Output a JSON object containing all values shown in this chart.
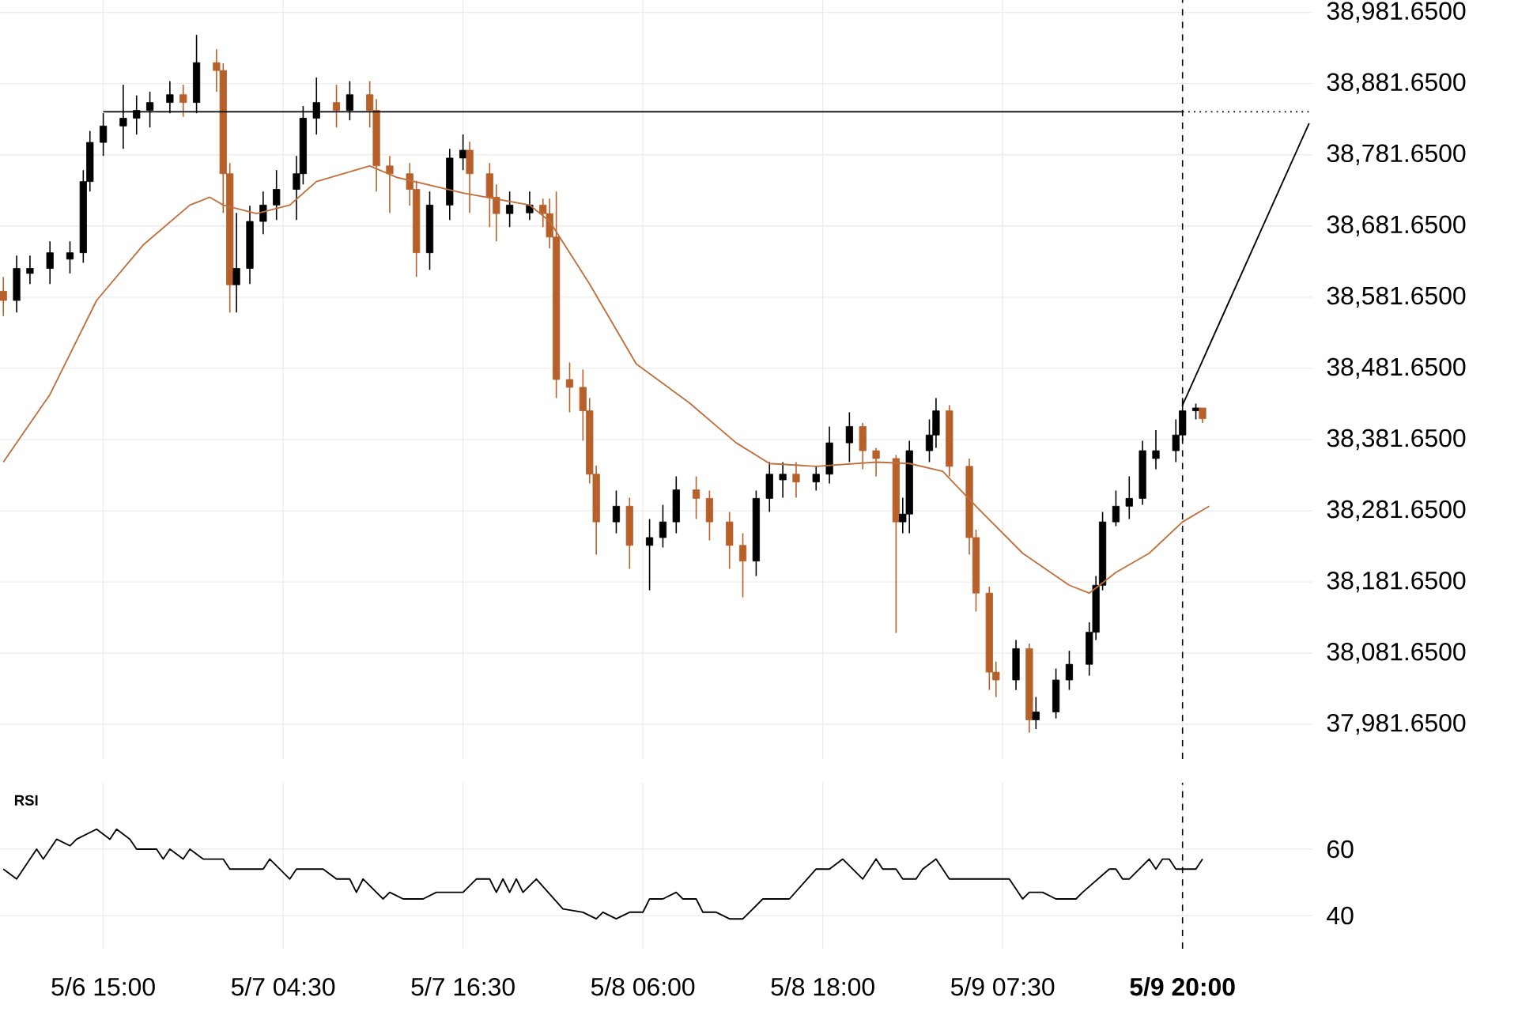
{
  "chart_data": [
    {
      "type": "candlestick",
      "categories": [
        null,
        null,
        null,
        null,
        null,
        null,
        null,
        null,
        null,
        null,
        null,
        null,
        null,
        null,
        null,
        "5/6 15:00",
        null,
        null,
        null,
        null,
        null,
        null,
        null,
        null,
        null,
        null,
        null,
        null,
        null,
        null,
        null,
        null,
        null,
        null,
        null,
        null,
        null,
        null,
        null,
        null,
        null,
        null,
        "5/7 04:30",
        null,
        null,
        null,
        null,
        null,
        null,
        null,
        null,
        null,
        null,
        null,
        null,
        null,
        null,
        null,
        null,
        null,
        null,
        null,
        null,
        null,
        null,
        null,
        null,
        null,
        null,
        "5/7 16:30",
        null,
        null,
        null,
        null,
        null,
        null,
        null,
        null,
        null,
        null,
        null,
        null,
        null,
        null,
        null,
        null,
        null,
        null,
        null,
        null,
        null,
        null,
        null,
        null,
        null,
        null,
        "5/8 06:00",
        null,
        null,
        null,
        null,
        null,
        null,
        null,
        null,
        null,
        null,
        null,
        null,
        null,
        null,
        null,
        null,
        null,
        null,
        null,
        null,
        null,
        null,
        null,
        null,
        null,
        null,
        "5/8 18:00",
        null,
        null,
        null,
        null,
        null,
        null,
        null,
        null,
        null,
        null,
        null,
        null,
        null,
        null,
        null,
        null,
        null,
        null,
        null,
        null,
        null,
        null,
        null,
        null,
        null,
        null,
        "5/9 07:30",
        null,
        null,
        null,
        null,
        null,
        null,
        null,
        null,
        null,
        null,
        null,
        null,
        null,
        null,
        null,
        null,
        null,
        null,
        null,
        null,
        null,
        null,
        null,
        null,
        null,
        null,
        "**5/9 20:00**",
        null,
        null,
        null,
        null,
        null,
        null,
        null,
        null,
        null,
        null,
        null,
        null,
        null,
        null,
        null,
        null,
        null,
        null,
        null
      ],
      "ohlc": [
        [
          38590,
          38610,
          38555,
          38577
        ],
        null,
        [
          38577,
          38640,
          38560,
          38622
        ],
        null,
        [
          38615,
          38640,
          38600,
          38622
        ],
        null,
        null,
        [
          38622,
          38660,
          38600,
          38644
        ],
        null,
        null,
        [
          38635,
          38660,
          38615,
          38644
        ],
        null,
        [
          38644,
          38760,
          38630,
          38744
        ],
        [
          38744,
          38815,
          38730,
          38799
        ],
        null,
        [
          38799,
          38840,
          38780,
          38822
        ],
        null,
        null,
        [
          38822,
          38880,
          38790,
          38833
        ],
        null,
        [
          38833,
          38865,
          38810,
          38844
        ],
        null,
        [
          38844,
          38870,
          38820,
          38855
        ],
        null,
        null,
        [
          38855,
          38885,
          38840,
          38866
        ],
        null,
        [
          38866,
          38880,
          38835,
          38855
        ],
        null,
        [
          38855,
          38950,
          38840,
          38911
        ],
        null,
        null,
        [
          38911,
          38930,
          38870,
          38900
        ],
        [
          38900,
          38910,
          38700,
          38755
        ],
        [
          38755,
          38770,
          38560,
          38599
        ],
        [
          38599,
          38700,
          38560,
          38622
        ],
        null,
        [
          38622,
          38710,
          38600,
          38688
        ],
        null,
        [
          38688,
          38730,
          38670,
          38711
        ],
        null,
        [
          38711,
          38760,
          38690,
          38733
        ],
        null,
        null,
        [
          38733,
          38780,
          38690,
          38755
        ],
        [
          38755,
          38850,
          38740,
          38833
        ],
        null,
        [
          38833,
          38890,
          38810,
          38855
        ],
        null,
        null,
        [
          38855,
          38880,
          38820,
          38844
        ],
        null,
        [
          38844,
          38885,
          38830,
          38866
        ],
        null,
        null,
        [
          38866,
          38885,
          38820,
          38844
        ],
        [
          38844,
          38860,
          38730,
          38766
        ],
        null,
        [
          38766,
          38780,
          38700,
          38755
        ],
        null,
        null,
        [
          38755,
          38770,
          38710,
          38733
        ],
        [
          38733,
          38745,
          38610,
          38644
        ],
        null,
        [
          38644,
          38730,
          38620,
          38711
        ],
        null,
        null,
        [
          38711,
          38790,
          38690,
          38777
        ],
        null,
        [
          38777,
          38810,
          38760,
          38788
        ],
        [
          38788,
          38800,
          38700,
          38755
        ],
        null,
        null,
        [
          38755,
          38770,
          38680,
          38722
        ],
        [
          38722,
          38740,
          38660,
          38699
        ],
        null,
        [
          38699,
          38730,
          38680,
          38711
        ],
        null,
        null,
        [
          38700,
          38730,
          38690,
          38711
        ],
        null,
        [
          38711,
          38720,
          38680,
          38699
        ],
        [
          38699,
          38720,
          38650,
          38666
        ],
        [
          38666,
          38730,
          38440,
          38466
        ],
        null,
        [
          38466,
          38490,
          38420,
          38455
        ],
        null,
        [
          38455,
          38480,
          38380,
          38422
        ],
        [
          38422,
          38440,
          38320,
          38333
        ],
        [
          38333,
          38345,
          38220,
          38266
        ],
        null,
        null,
        [
          38266,
          38310,
          38250,
          38288
        ],
        null,
        [
          38288,
          38300,
          38200,
          38233
        ],
        null,
        null,
        [
          38233,
          38270,
          38170,
          38244
        ],
        null,
        [
          38244,
          38290,
          38230,
          38266
        ],
        null,
        [
          38266,
          38330,
          38250,
          38311
        ],
        null,
        null,
        [
          38311,
          38330,
          38270,
          38299
        ],
        null,
        [
          38299,
          38310,
          38240,
          38266
        ],
        null,
        null,
        [
          38266,
          38280,
          38200,
          38233
        ],
        null,
        [
          38233,
          38250,
          38160,
          38211
        ],
        null,
        [
          38211,
          38310,
          38190,
          38299
        ],
        null,
        [
          38299,
          38350,
          38280,
          38333
        ],
        null,
        [
          38325,
          38350,
          38300,
          38333
        ],
        null,
        [
          38333,
          38350,
          38300,
          38322
        ],
        null,
        null,
        [
          38322,
          38345,
          38310,
          38333
        ],
        null,
        [
          38333,
          38400,
          38320,
          38377
        ],
        null,
        null,
        [
          38377,
          38420,
          38350,
          38400
        ],
        null,
        [
          38400,
          38405,
          38340,
          38366
        ],
        null,
        [
          38366,
          38370,
          38330,
          38355
        ],
        null,
        null,
        [
          38355,
          38360,
          38110,
          38266
        ],
        [
          38266,
          38300,
          38250,
          38277
        ],
        [
          38277,
          38380,
          38250,
          38366
        ],
        null,
        null,
        [
          38366,
          38410,
          38350,
          38388
        ],
        [
          38388,
          38440,
          38370,
          38422
        ],
        null,
        [
          38422,
          38430,
          38330,
          38344
        ],
        null,
        null,
        [
          38344,
          38355,
          38220,
          38244
        ],
        [
          38244,
          38255,
          38140,
          38166
        ],
        null,
        [
          38166,
          38175,
          38030,
          38055
        ],
        [
          38055,
          38070,
          38020,
          38044
        ],
        null,
        null,
        [
          38044,
          38100,
          38030,
          38088
        ],
        null,
        [
          38088,
          38095,
          37970,
          37988
        ],
        [
          37988,
          38020,
          37975,
          37999
        ],
        null,
        null,
        [
          37999,
          38060,
          37990,
          38044
        ],
        null,
        [
          38044,
          38085,
          38030,
          38066
        ],
        null,
        null,
        [
          38066,
          38125,
          38050,
          38111
        ],
        [
          38111,
          38190,
          38100,
          38177
        ],
        [
          38177,
          38280,
          38170,
          38266
        ],
        null,
        [
          38266,
          38310,
          38260,
          38288
        ],
        null,
        [
          38288,
          38330,
          38270,
          38299
        ],
        null,
        [
          38299,
          38380,
          38290,
          38366
        ],
        null,
        [
          38355,
          38395,
          38340,
          38366
        ],
        null,
        null,
        [
          38366,
          38410,
          38350,
          38388
        ],
        [
          38388,
          38440,
          38380,
          38422
        ],
        null,
        [
          38422,
          38432,
          38410,
          38426
        ],
        [
          38426,
          38426,
          38405,
          38411
        ],
        null,
        null,
        null,
        null,
        null,
        null,
        null,
        null,
        null,
        null,
        null,
        null,
        null,
        null,
        null,
        null
      ],
      "colors": [
        "#b8602a",
        null,
        "#000000",
        null,
        "#000000",
        null,
        null,
        "#000000",
        null,
        null,
        "#000000",
        null,
        "#000000",
        "#000000",
        null,
        "#000000",
        null,
        null,
        "#000000",
        null,
        "#000000",
        null,
        "#000000",
        null,
        null,
        "#000000",
        null,
        "#b8602a",
        null,
        "#000000",
        null,
        null,
        "#b8602a",
        "#b8602a",
        "#b8602a",
        "#000000",
        null,
        "#000000",
        null,
        "#000000",
        null,
        "#000000",
        null,
        null,
        "#000000",
        "#000000",
        null,
        "#000000",
        null,
        null,
        "#b8602a",
        null,
        "#000000",
        null,
        null,
        "#b8602a",
        "#b8602a",
        null,
        "#b8602a",
        null,
        null,
        "#b8602a",
        "#b8602a",
        null,
        "#000000",
        null,
        null,
        "#000000",
        null,
        "#000000",
        "#b8602a",
        null,
        null,
        "#b8602a",
        "#b8602a",
        null,
        "#000000",
        null,
        null,
        "#000000",
        null,
        "#b8602a",
        "#b8602a",
        "#b8602a",
        null,
        "#b8602a",
        null,
        "#b8602a",
        "#b8602a",
        "#b8602a",
        null,
        null,
        "#000000",
        null,
        "#b8602a",
        null,
        null,
        "#000000",
        null,
        "#000000",
        null,
        "#000000",
        null,
        null,
        "#b8602a",
        null,
        "#b8602a",
        null,
        null,
        "#b8602a",
        null,
        "#b8602a",
        null,
        "#000000",
        null,
        "#000000",
        null,
        "#000000",
        null,
        "#b8602a",
        null,
        null,
        "#000000",
        null,
        "#000000",
        null,
        null,
        "#000000",
        null,
        "#b8602a",
        null,
        "#b8602a",
        null,
        null,
        "#b8602a",
        "#000000",
        "#000000",
        null,
        null,
        "#000000",
        "#000000",
        null,
        "#b8602a",
        null,
        null,
        "#b8602a",
        "#b8602a",
        null,
        "#b8602a",
        "#b8602a",
        null,
        null,
        "#000000",
        null,
        "#b8602a",
        "#000000",
        null,
        null,
        "#000000",
        null,
        "#000000",
        null,
        null,
        "#000000",
        "#000000",
        "#000000",
        null,
        "#000000",
        null,
        "#000000",
        null,
        "#000000",
        null,
        "#000000",
        null,
        null,
        "#000000",
        "#000000",
        null,
        "#000000",
        "#b8602a",
        null,
        null,
        null,
        null,
        null,
        null,
        null,
        null,
        null,
        null,
        null,
        null,
        null,
        null,
        null,
        null
      ],
      "series": [
        {
          "type": "line",
          "color": "#c0703c",
          "values": [
            38350,
            null,
            null,
            null,
            null,
            null,
            null,
            38445,
            null,
            null,
            null,
            null,
            null,
            null,
            38577,
            null,
            null,
            null,
            null,
            null,
            null,
            38655,
            null,
            null,
            null,
            null,
            null,
            null,
            38711,
            null,
            null,
            38722,
            null,
            38711,
            null,
            null,
            null,
            null,
            38699,
            null,
            null,
            null,
            null,
            38711,
            null,
            null,
            null,
            38744,
            null,
            null,
            null,
            null,
            null,
            null,
            null,
            38766,
            null,
            null,
            null,
            38750,
            null,
            null,
            null,
            null,
            null,
            null,
            null,
            null,
            null,
            38728,
            null,
            null,
            null,
            null,
            null,
            null,
            null,
            null,
            null,
            38711,
            null,
            null,
            38688,
            null,
            null,
            null,
            null,
            null,
            38600,
            null,
            null,
            null,
            null,
            null,
            null,
            38488,
            null,
            null,
            null,
            null,
            null,
            null,
            null,
            38433,
            null,
            null,
            null,
            null,
            null,
            null,
            38377,
            null,
            null,
            null,
            null,
            38348,
            null,
            null,
            null,
            null,
            null,
            null,
            38344,
            null,
            null,
            null,
            null,
            null,
            null,
            null,
            null,
            38350,
            null,
            null,
            null,
            null,
            38348,
            null,
            null,
            null,
            null,
            38337,
            null,
            null,
            null,
            null,
            38288,
            null,
            null,
            null,
            null,
            null,
            null,
            38222,
            null,
            null,
            null,
            null,
            null,
            null,
            38177,
            null,
            null,
            38166,
            null,
            null,
            null,
            38195,
            null,
            null,
            null,
            null,
            38222,
            null,
            null,
            null,
            null,
            38266,
            null,
            null,
            null,
            38288,
            null,
            null,
            null,
            null,
            null,
            null,
            null,
            null,
            null,
            null,
            null,
            null,
            null,
            null,
            null
          ]
        },
        {
          "type": "line",
          "color": "#000000",
          "line_style": "solid",
          "values": [
            null,
            null,
            null,
            null,
            null,
            null,
            null,
            null,
            null,
            null,
            null,
            null,
            null,
            null,
            null,
            38842,
            null,
            null,
            null,
            null,
            null,
            null,
            null,
            null,
            null,
            null,
            null,
            null,
            null,
            null,
            null,
            null,
            null,
            null,
            null,
            null,
            null,
            null,
            null,
            null,
            null,
            null,
            null,
            null,
            null,
            null,
            null,
            null,
            null,
            null,
            null,
            null,
            null,
            null,
            null,
            null,
            null,
            null,
            null,
            null,
            null,
            null,
            null,
            null,
            null,
            null,
            null,
            null,
            null,
            null,
            null,
            null,
            null,
            null,
            null,
            null,
            null,
            null,
            null,
            null,
            null,
            null,
            null,
            null,
            null,
            null,
            null,
            null,
            null,
            null,
            null,
            null,
            null,
            null,
            null,
            null,
            null,
            null,
            null,
            null,
            null,
            null,
            null,
            null,
            null,
            null,
            null,
            null,
            null,
            null,
            null,
            null,
            null,
            null,
            null,
            null,
            null,
            null,
            null,
            null,
            null,
            null,
            null,
            null,
            null,
            null,
            null,
            null,
            null,
            null,
            null,
            null,
            null,
            null,
            null,
            null,
            null,
            null,
            null,
            null,
            null,
            null,
            null,
            null,
            null,
            null,
            null,
            null,
            null,
            null,
            null,
            null,
            null,
            null,
            null,
            null,
            null,
            null,
            null,
            null,
            null,
            null,
            null,
            null,
            null,
            null,
            null,
            null,
            null,
            null,
            null,
            null,
            null,
            null,
            null,
            null,
            null,
            38842,
            null,
            null,
            null,
            null,
            null,
            null,
            null,
            null,
            null,
            null,
            null,
            null,
            null,
            null,
            null,
            null,
            null,
            null,
            null
          ]
        },
        {
          "type": "line",
          "color": "#000000",
          "line_style": "dotted",
          "values": [
            null,
            null,
            null,
            null,
            null,
            null,
            null,
            null,
            null,
            null,
            null,
            null,
            null,
            null,
            null,
            null,
            null,
            null,
            null,
            null,
            null,
            null,
            null,
            null,
            null,
            null,
            null,
            null,
            null,
            null,
            null,
            null,
            null,
            null,
            null,
            null,
            null,
            null,
            null,
            null,
            null,
            null,
            null,
            null,
            null,
            null,
            null,
            null,
            null,
            null,
            null,
            null,
            null,
            null,
            null,
            null,
            null,
            null,
            null,
            null,
            null,
            null,
            null,
            null,
            null,
            null,
            null,
            null,
            null,
            null,
            null,
            null,
            null,
            null,
            null,
            null,
            null,
            null,
            null,
            null,
            null,
            null,
            null,
            null,
            null,
            null,
            null,
            null,
            null,
            null,
            null,
            null,
            null,
            null,
            null,
            null,
            null,
            null,
            null,
            null,
            null,
            null,
            null,
            null,
            null,
            null,
            null,
            null,
            null,
            null,
            null,
            null,
            null,
            null,
            null,
            null,
            null,
            null,
            null,
            null,
            null,
            null,
            null,
            null,
            null,
            null,
            null,
            null,
            null,
            null,
            null,
            null,
            null,
            null,
            null,
            null,
            null,
            null,
            null,
            null,
            null,
            null,
            null,
            null,
            null,
            null,
            null,
            null,
            null,
            null,
            null,
            null,
            null,
            null,
            null,
            null,
            null,
            null,
            null,
            null,
            null,
            null,
            null,
            null,
            null,
            null,
            null,
            null,
            null,
            null,
            null,
            null,
            null,
            null,
            null,
            null,
            null,
            38842,
            null,
            null,
            null,
            null,
            null,
            null,
            null,
            null,
            null,
            null,
            null,
            null,
            null,
            null,
            null,
            null,
            null,
            null,
            38842
          ]
        },
        {
          "type": "line",
          "color": "#000000",
          "line_style": "solid",
          "values": [
            null,
            null,
            null,
            null,
            null,
            null,
            null,
            null,
            null,
            null,
            null,
            null,
            null,
            null,
            null,
            null,
            null,
            null,
            null,
            null,
            null,
            null,
            null,
            null,
            null,
            null,
            null,
            null,
            null,
            null,
            null,
            null,
            null,
            null,
            null,
            null,
            null,
            null,
            null,
            null,
            null,
            null,
            null,
            null,
            null,
            null,
            null,
            null,
            null,
            null,
            null,
            null,
            null,
            null,
            null,
            null,
            null,
            null,
            null,
            null,
            null,
            null,
            null,
            null,
            null,
            null,
            null,
            null,
            null,
            null,
            null,
            null,
            null,
            null,
            null,
            null,
            null,
            null,
            null,
            null,
            null,
            null,
            null,
            null,
            null,
            null,
            null,
            null,
            null,
            null,
            null,
            null,
            null,
            null,
            null,
            null,
            null,
            null,
            null,
            null,
            null,
            null,
            null,
            null,
            null,
            null,
            null,
            null,
            null,
            null,
            null,
            null,
            null,
            null,
            null,
            null,
            null,
            null,
            null,
            null,
            null,
            null,
            null,
            null,
            null,
            null,
            null,
            null,
            null,
            null,
            null,
            null,
            null,
            null,
            null,
            null,
            null,
            null,
            null,
            null,
            null,
            null,
            null,
            null,
            null,
            null,
            null,
            null,
            null,
            null,
            null,
            null,
            null,
            null,
            null,
            null,
            null,
            null,
            null,
            null,
            null,
            null,
            null,
            null,
            null,
            null,
            null,
            null,
            null,
            null,
            null,
            null,
            null,
            null,
            null,
            null,
            null,
            38430,
            null,
            null,
            null,
            null,
            null,
            null,
            null,
            null,
            null,
            null,
            null,
            null,
            null,
            null,
            null,
            null,
            null,
            null,
            38826
          ]
        }
      ],
      "ref_lines": [
        {
          "axis": "x",
          "value": "**5/9 20:00**",
          "line_style": "dashed",
          "color": "#000000"
        }
      ],
      "ylim": [
        37933,
        38999
      ],
      "yticks": [
        {
          "value": 37981.65,
          "label": "37,981.6500"
        },
        {
          "value": 38081.65,
          "label": "38,081.6500"
        },
        {
          "value": 38181.65,
          "label": "38,181.6500"
        },
        {
          "value": 38281.65,
          "label": "38,281.6500"
        },
        {
          "value": 38381.65,
          "label": "38,381.6500"
        },
        {
          "value": 38481.65,
          "label": "38,481.6500"
        },
        {
          "value": 38581.65,
          "label": "38,581.6500"
        },
        {
          "value": 38681.65,
          "label": "38,681.6500"
        },
        {
          "value": 38781.65,
          "label": "38,781.6500"
        },
        {
          "value": 38881.65,
          "label": "38,881.6500"
        },
        {
          "value": 38981.65,
          "label": "38,981.6500"
        }
      ],
      "grid": true,
      "tick_labels": "y"
    },
    {
      "type": "line",
      "title": "RSI",
      "categories": [
        null,
        null,
        null,
        null,
        null,
        null,
        null,
        null,
        null,
        null,
        null,
        null,
        null,
        null,
        null,
        "5/6 15:00",
        null,
        null,
        null,
        null,
        null,
        null,
        null,
        null,
        null,
        null,
        null,
        null,
        null,
        null,
        null,
        null,
        null,
        null,
        null,
        null,
        null,
        null,
        null,
        null,
        null,
        null,
        "5/7 04:30",
        null,
        null,
        null,
        null,
        null,
        null,
        null,
        null,
        null,
        null,
        null,
        null,
        null,
        null,
        null,
        null,
        null,
        null,
        null,
        null,
        null,
        null,
        null,
        null,
        null,
        null,
        "5/7 16:30",
        null,
        null,
        null,
        null,
        null,
        null,
        null,
        null,
        null,
        null,
        null,
        null,
        null,
        null,
        null,
        null,
        null,
        null,
        null,
        null,
        null,
        null,
        null,
        null,
        null,
        null,
        "5/8 06:00",
        null,
        null,
        null,
        null,
        null,
        null,
        null,
        null,
        null,
        null,
        null,
        null,
        null,
        null,
        null,
        null,
        null,
        null,
        null,
        null,
        null,
        null,
        null,
        null,
        null,
        null,
        "5/8 18:00",
        null,
        null,
        null,
        null,
        null,
        null,
        null,
        null,
        null,
        null,
        null,
        null,
        null,
        null,
        null,
        null,
        null,
        null,
        null,
        null,
        null,
        null,
        null,
        null,
        null,
        null,
        "5/9 07:30",
        null,
        null,
        null,
        null,
        null,
        null,
        null,
        null,
        null,
        null,
        null,
        null,
        null,
        null,
        null,
        null,
        null,
        null,
        null,
        null,
        null,
        null,
        null,
        null,
        null,
        null,
        "**5/9 20:00**",
        null,
        null,
        null,
        null,
        null,
        null,
        null,
        null,
        null,
        null,
        null,
        null,
        null,
        null,
        null,
        null,
        null,
        null,
        null
      ],
      "series": [
        {
          "color": "#000000",
          "values": [
            54,
            null,
            51,
            null,
            null,
            60,
            57,
            null,
            63,
            null,
            61,
            63,
            null,
            null,
            66,
            null,
            63,
            66,
            null,
            63,
            60,
            null,
            null,
            60,
            57,
            60,
            null,
            57,
            60,
            null,
            57,
            null,
            null,
            57,
            54,
            null,
            null,
            null,
            null,
            54,
            57,
            null,
            null,
            51,
            54,
            null,
            null,
            null,
            54,
            null,
            51,
            null,
            51,
            47,
            51,
            null,
            47,
            45,
            47,
            null,
            45,
            null,
            null,
            45,
            null,
            47,
            null,
            null,
            null,
            47,
            null,
            51,
            null,
            51,
            47,
            51,
            47,
            51,
            47,
            null,
            51,
            null,
            null,
            null,
            42,
            null,
            null,
            41,
            null,
            39,
            41,
            null,
            39,
            null,
            41,
            null,
            41,
            45,
            null,
            45,
            null,
            47,
            45,
            null,
            45,
            41,
            null,
            41,
            null,
            39,
            null,
            39,
            41,
            null,
            45,
            null,
            null,
            null,
            45,
            null,
            null,
            null,
            54,
            null,
            54,
            null,
            57,
            null,
            null,
            51,
            null,
            57,
            54,
            null,
            54,
            51,
            null,
            51,
            54,
            null,
            57,
            null,
            51,
            null,
            null,
            null,
            null,
            null,
            null,
            null,
            null,
            51,
            null,
            45,
            47,
            null,
            47,
            null,
            45,
            null,
            null,
            45,
            47,
            null,
            null,
            null,
            54,
            54,
            51,
            51,
            null,
            null,
            57,
            54,
            57,
            57,
            54,
            null,
            null,
            54,
            57,
            null,
            null,
            null,
            null,
            null,
            null,
            null,
            null,
            null,
            null,
            null,
            null,
            null,
            null,
            null,
            null
          ]
        }
      ],
      "ref_lines": [
        {
          "axis": "x",
          "value": "**5/9 20:00**",
          "line_style": "dashed",
          "color": "#000000"
        }
      ],
      "ylim": [
        30,
        80
      ],
      "yticks": [
        40,
        60
      ],
      "grid": true
    }
  ]
}
